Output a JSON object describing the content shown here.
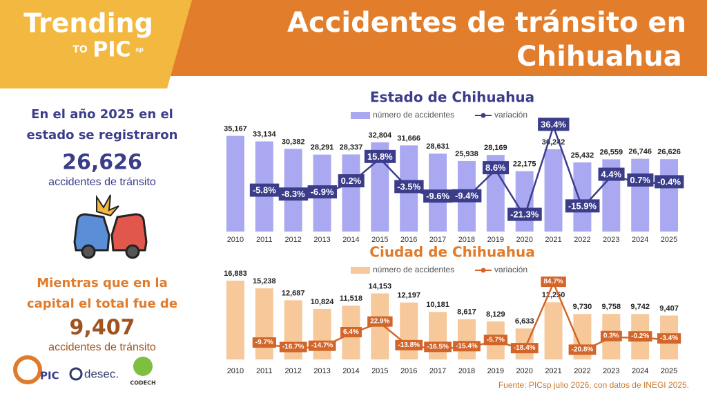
{
  "header": {
    "brand": "Trending",
    "brand_to": "TO",
    "brand_pic": "PIC",
    "brand_sp": "sp",
    "title_lines": [
      "Accidentes de tránsito en",
      "Chihuahua"
    ]
  },
  "left_panel": {
    "state_lines": [
      "En el año 2025 en el",
      "estado se registraron"
    ],
    "state_total": "26,626",
    "state_unit": "accidentes de tránsito",
    "city_lines": [
      "Mientras que en la",
      "capital el total fue de"
    ],
    "city_total": "9,407",
    "city_unit": "accidentes de tránsito"
  },
  "logos": [
    "PIC",
    "desec.",
    "CODECH"
  ],
  "footer": "Fuente: PICsp julio 2026, con datos de INEGI 2025.",
  "chart_data": [
    {
      "type": "bar",
      "title": "Estado de Chihuahua",
      "categories": [
        "2010",
        "2011",
        "2012",
        "2013",
        "2014",
        "2015",
        "2016",
        "2017",
        "2018",
        "2019",
        "2020",
        "2021",
        "2022",
        "2023",
        "2024",
        "2025"
      ],
      "ylim": [
        0,
        47000
      ],
      "y2lim": [
        -31,
        51
      ],
      "series": [
        {
          "name": "número de accidentes",
          "color": "#a9a8f0",
          "values": [
            35167,
            33134,
            30382,
            28291,
            28337,
            32804,
            31666,
            28631,
            25938,
            28169,
            22175,
            30242,
            25432,
            26559,
            26746,
            26626
          ],
          "value_labels": [
            "35,167",
            "33,134",
            "30,382",
            "28,291",
            "28,337",
            "32,804",
            "31,666",
            "28,631",
            "25,938",
            "28,169",
            "22,175",
            "30,242",
            "25,432",
            "26,559",
            "26,746",
            "26,626"
          ]
        },
        {
          "name": "variación",
          "type": "line",
          "axis": "y2",
          "color": "#3b3d8a",
          "values": [
            null,
            -5.8,
            -8.3,
            -6.9,
            0.2,
            15.8,
            -3.5,
            -9.6,
            -9.4,
            8.6,
            -21.3,
            36.4,
            -15.9,
            4.4,
            0.7,
            -0.4
          ],
          "value_labels": [
            null,
            "-5.8%",
            "-8.3%",
            "-6.9%",
            "0.2%",
            "15.8%",
            "-3.5%",
            "-9.6%",
            "-9.4%",
            "8.6%",
            "-21.3%",
            "36.4%",
            "-15.9%",
            "4.4%",
            "0.7%",
            "-0.4%"
          ]
        }
      ]
    },
    {
      "type": "bar",
      "title": "Ciudad de Chihuahua",
      "categories": [
        "2010",
        "2011",
        "2012",
        "2013",
        "2014",
        "2015",
        "2016",
        "2017",
        "2018",
        "2019",
        "2020",
        "2021",
        "2022",
        "2023",
        "2024",
        "2025"
      ],
      "ylim": [
        0,
        20000
      ],
      "y2lim": [
        -34,
        111
      ],
      "series": [
        {
          "name": "número de accidentes",
          "color": "#f6c89a",
          "values": [
            16883,
            15238,
            12687,
            10824,
            11518,
            14153,
            12197,
            10181,
            8617,
            8129,
            6633,
            12250,
            9730,
            9758,
            9742,
            9407
          ],
          "value_labels": [
            "16,883",
            "15,238",
            "12,687",
            "10,824",
            "11,518",
            "14,153",
            "12,197",
            "10,181",
            "8,617",
            "8,129",
            "6,633",
            "12,250",
            "9,730",
            "9,758",
            "9,742",
            "9,407"
          ]
        },
        {
          "name": "variación",
          "type": "line",
          "axis": "y2",
          "color": "#d2652a",
          "values": [
            null,
            -9.7,
            -16.7,
            -14.7,
            6.4,
            22.9,
            -13.8,
            -16.5,
            -15.4,
            -5.7,
            -18.4,
            84.7,
            -20.8,
            0.3,
            -0.2,
            -3.4
          ],
          "value_labels": [
            null,
            "-9.7%",
            "-16.7%",
            "-14.7%",
            "6.4%",
            "22.9%",
            "-13.8%",
            "-16.5%",
            "-15.4%",
            "-5.7%",
            "-18.4%",
            "84.7%",
            "-20.8%",
            "0.3%",
            "-0.2%",
            "-3.4%"
          ]
        }
      ]
    }
  ]
}
